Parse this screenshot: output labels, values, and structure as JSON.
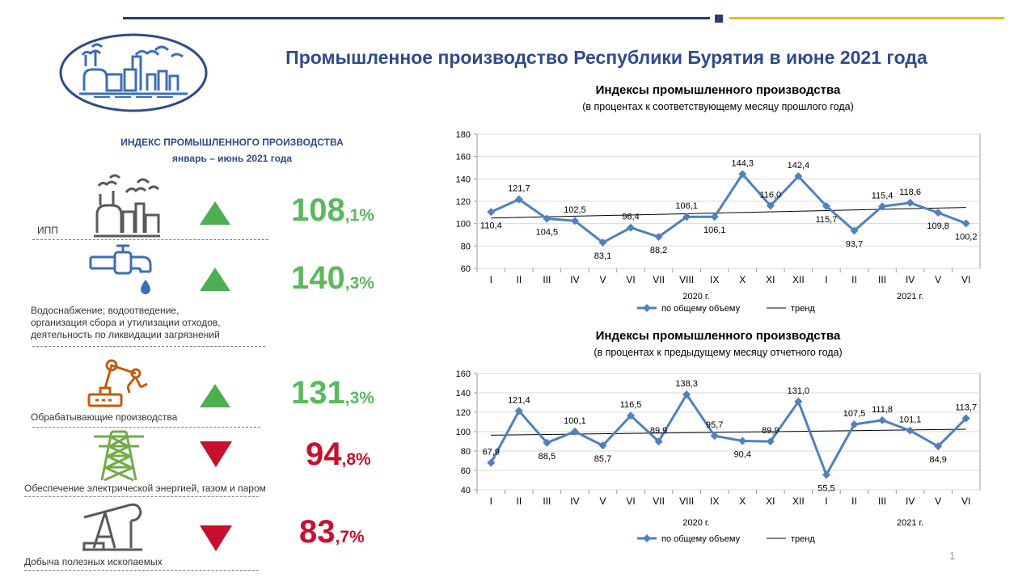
{
  "header": {
    "title": "Промышленное производство Республики Бурятия в июне 2021 года"
  },
  "left_panel": {
    "heading_line1": "ИНДЕКС ПРОМЫШЛЕННОГО ПРОИЗВОДСТВА",
    "heading_line2": "январь – июнь 2021 года",
    "rows": [
      {
        "caption": [
          "ИПП"
        ],
        "value_int": "108",
        "value_dec": ",1%",
        "direction": "up",
        "icon": "factory-icon"
      },
      {
        "caption": [
          "Водоснабжение; водоотведение,",
          "организация сбора и утилизации отходов,",
          "деятельность по ликвидации загрязнений"
        ],
        "value_int": "140",
        "value_dec": ",3%",
        "direction": "up",
        "icon": "water-tap-icon"
      },
      {
        "caption": [
          "Обрабатывающие производства"
        ],
        "value_int": "131",
        "value_dec": ",3%",
        "direction": "up",
        "icon": "robot-arm-icon"
      },
      {
        "caption": [
          "Обеспечение электрической энергией, газом и паром"
        ],
        "value_int": "94",
        "value_dec": ",8%",
        "direction": "down",
        "icon": "power-tower-icon"
      },
      {
        "caption": [
          "Добыча полезных ископаемых"
        ],
        "value_int": "83",
        "value_dec": ",7%",
        "direction": "down",
        "icon": "oil-pump-icon"
      }
    ],
    "colors": {
      "up": "#4caf50",
      "down": "#c8102e",
      "icon_blue": "#3b6fb6",
      "icon_gray": "#595959",
      "icon_orange": "#c55a11",
      "icon_green": "#70ad47"
    }
  },
  "chart_data": [
    {
      "type": "line",
      "title": "Индексы промышленного производства",
      "subtitle": "(в процентах к соответствующему месяцу прошлого года)",
      "categories": [
        "I",
        "II",
        "III",
        "IV",
        "V",
        "VI",
        "VII",
        "VIII",
        "IX",
        "X",
        "XI",
        "XII",
        "I",
        "II",
        "III",
        "IV",
        "V",
        "VI"
      ],
      "year_labels": [
        "2020 г.",
        "2021 г."
      ],
      "series": [
        {
          "name": "по общему объему",
          "values": [
            110.4,
            121.7,
            104.5,
            102.5,
            83.1,
            96.4,
            88.2,
            106.1,
            106.1,
            144.3,
            116.0,
            142.4,
            115.7,
            93.7,
            115.4,
            118.6,
            109.8,
            100.2
          ],
          "color": "#4f81bd"
        }
      ],
      "data_labels": [
        "110,4",
        "121,7",
        "104,5",
        "102,5",
        "83,1",
        "96,4",
        "88,2",
        "106,1",
        "106,1",
        "144,3",
        "116,0",
        "142,4",
        "115,7",
        "93,7",
        "115,4",
        "118,6",
        "109,8",
        "100,2"
      ],
      "trend_name": "тренд",
      "ylim": [
        60,
        180
      ],
      "yticks": [
        "60",
        "80",
        "100",
        "120",
        "140",
        "160",
        "180"
      ],
      "legend": "bottom"
    },
    {
      "type": "line",
      "title": "Индексы промышленного производства",
      "subtitle": "(в процентах к предыдущему месяцу отчетного года)",
      "categories": [
        "I",
        "II",
        "III",
        "IV",
        "V",
        "VI",
        "VII",
        "VIII",
        "IX",
        "X",
        "XI",
        "XII",
        "I",
        "II",
        "III",
        "IV",
        "V",
        "VI"
      ],
      "year_labels": [
        "2020 г.",
        "2021 г."
      ],
      "series": [
        {
          "name": "по общему объему",
          "values": [
            67.9,
            121.4,
            88.5,
            100.1,
            85.7,
            116.5,
            89.9,
            138.3,
            95.7,
            90.4,
            89.9,
            131.0,
            55.5,
            107.5,
            111.8,
            101.1,
            84.9,
            113.7
          ],
          "color": "#4f81bd"
        }
      ],
      "data_labels": [
        "67,9",
        "121,4",
        "88,5",
        "100,1",
        "85,7",
        "116,5",
        "89,9",
        "138,3",
        "95,7",
        "90,4",
        "89,9",
        "131,0",
        "55,5",
        "107,5",
        "111,8",
        "101,1",
        "84,9",
        "113,7"
      ],
      "trend_name": "тренд",
      "ylim": [
        40,
        160
      ],
      "yticks": [
        "40",
        "60",
        "80",
        "100",
        "120",
        "140",
        "160"
      ],
      "legend": "bottom"
    }
  ],
  "footer": {
    "page_number": "1"
  }
}
